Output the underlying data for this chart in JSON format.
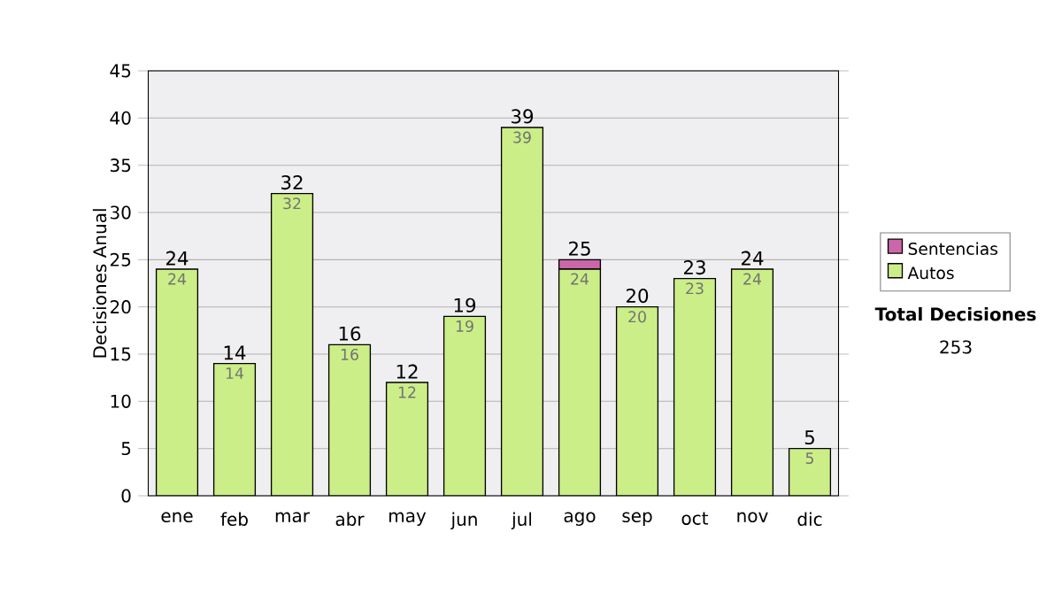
{
  "chart_data": {
    "type": "bar",
    "stacked": true,
    "ylabel": "Decisiones Anual",
    "categories": [
      "ene",
      "feb",
      "mar",
      "abr",
      "may",
      "jun",
      "jul",
      "ago",
      "sep",
      "oct",
      "nov",
      "dic"
    ],
    "series": [
      {
        "name": "Autos",
        "color": "#ccee88",
        "values": [
          24,
          14,
          32,
          16,
          12,
          19,
          39,
          24,
          20,
          23,
          24,
          5
        ],
        "value_labels": [
          "24",
          "14",
          "32",
          "16",
          "12",
          "19",
          "39",
          "24",
          "20",
          "23",
          "24",
          "5"
        ]
      },
      {
        "name": "Sentencias",
        "color": "#cc66aa",
        "values": [
          0,
          0,
          0,
          0,
          0,
          0,
          0,
          1,
          0,
          0,
          0,
          0
        ]
      }
    ],
    "totals": [
      "24",
      "14",
      "32",
      "16",
      "12",
      "19",
      "39",
      "25",
      "20",
      "23",
      "24",
      "5"
    ],
    "ylim": [
      0,
      45
    ],
    "yticks": [
      0,
      5,
      10,
      15,
      20,
      25,
      30,
      35,
      40,
      45
    ],
    "grid": "y",
    "legend": "right",
    "annotations": [
      "Total Decisiones",
      "253"
    ]
  }
}
